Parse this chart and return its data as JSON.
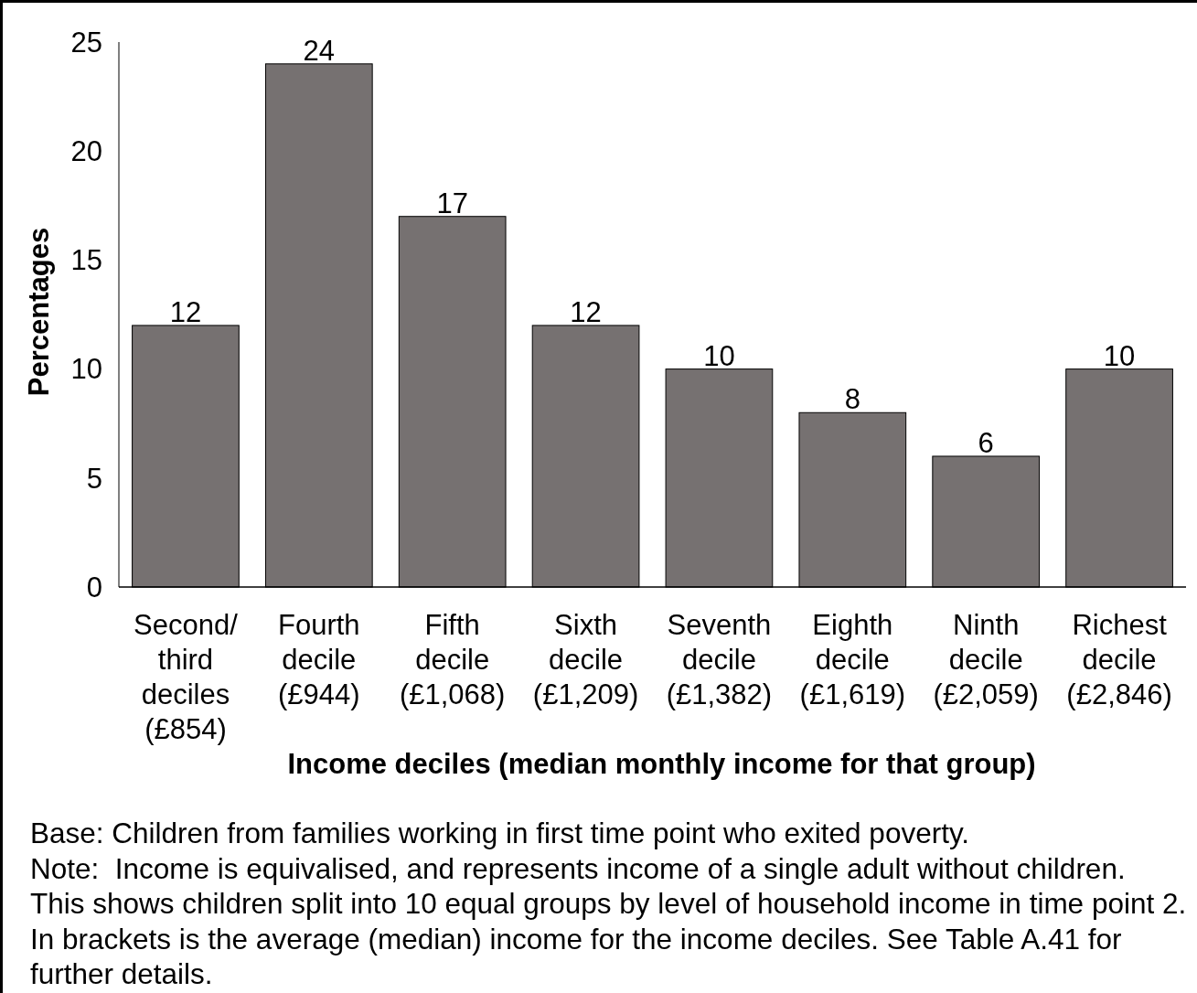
{
  "chart_data": {
    "type": "bar",
    "categories": [
      "Second/\nthird\ndeciles\n(£854)",
      "Fourth\ndecile\n(£944)",
      "Fifth\ndecile\n(£1,068)",
      "Sixth\ndecile\n(£1,209)",
      "Seventh\ndecile\n(£1,382)",
      "Eighth\ndecile\n(£1,619)",
      "Ninth\ndecile\n(£2,059)",
      "Richest\ndecile\n(£2,846)"
    ],
    "values": [
      12,
      24,
      17,
      12,
      10,
      8,
      6,
      10
    ],
    "color": "#767171",
    "data_labels": true,
    "ylim": [
      0,
      25
    ],
    "yticks": [
      0,
      5,
      10,
      15,
      20,
      25
    ],
    "xlabel": "Income deciles (median monthly income for that group)",
    "ylabel": "Percentages",
    "annotations": [
      "Base: Children from families working in first time point who exited poverty.",
      "Note:  Income is equivalised, and represents income of a single adult without children.",
      "This shows children split into 10 equal groups by level of household income in time point 2.",
      "In brackets is the average (median) income for the income deciles. See Table A.41 for further details."
    ]
  }
}
